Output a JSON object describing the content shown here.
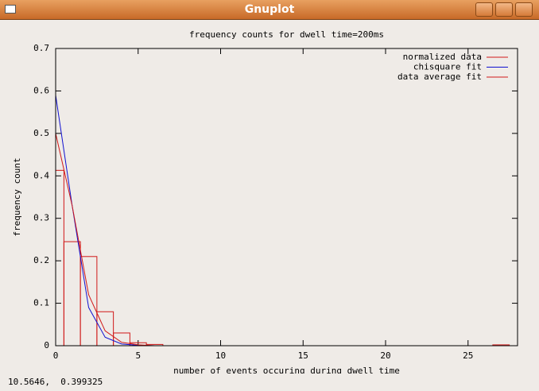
{
  "window": {
    "title": "Gnuplot"
  },
  "status_bar": "10.5646,  0.399325",
  "chart_data": {
    "type": "line",
    "title": "frequency counts for dwell time=200ms",
    "x_label": "number of events occuring during dwell time",
    "y_label": "frequency count",
    "xlim": [
      0,
      28
    ],
    "xticks": [
      0,
      5,
      10,
      15,
      20,
      25
    ],
    "ylim": [
      0,
      0.7
    ],
    "yticks": [
      0,
      0.1,
      0.2,
      0.3,
      0.4,
      0.5,
      0.6,
      0.7
    ],
    "legend": "top-right",
    "x": [
      0,
      1,
      2,
      3,
      4,
      5,
      6,
      27
    ],
    "series": [
      {
        "name": "normalized data",
        "color": "#d01818",
        "style": "histeps",
        "values": [
          0.413,
          0.245,
          0.21,
          0.08,
          0.03,
          0.007,
          0.003,
          0.002
        ]
      },
      {
        "name": "chisquare fit",
        "color": "#1010d0",
        "style": "lines",
        "values": [
          0.59,
          0.33,
          0.09,
          0.02,
          0.004,
          0.001,
          0,
          0
        ]
      },
      {
        "name": "data average fit",
        "color": "#d01818",
        "style": "lines",
        "values": [
          0.5,
          0.33,
          0.12,
          0.035,
          0.008,
          0.002,
          0,
          0
        ]
      }
    ]
  }
}
